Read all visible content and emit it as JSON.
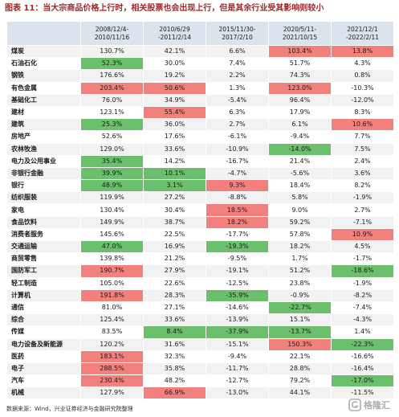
{
  "title": "图表 11：当大宗商品价格上行时，相关股票也会出现上行，但是其余行业受其影响则较小",
  "table": {
    "corner": "",
    "headers": [
      {
        "line1": "2008/12/4-",
        "line2": "2010/11/16"
      },
      {
        "line1": "2010/6/29",
        "line2": "-2011/2/14"
      },
      {
        "line1": "2015/11/30-",
        "line2": "2017/2/10"
      },
      {
        "line1": "2020/5/11-",
        "line2": "2021/10/15"
      },
      {
        "line1": "2021/12/1",
        "line2": "-2022/2/11"
      }
    ],
    "rows": [
      {
        "name": "煤炭",
        "values": [
          "130.7%",
          "42.1%",
          "6.6%",
          "103.4%",
          "13.8%"
        ],
        "marks": [
          0,
          0,
          0,
          1,
          1
        ]
      },
      {
        "name": "石油石化",
        "values": [
          "52.3%",
          "30.0%",
          "7.4%",
          "51.7%",
          "4.3%"
        ],
        "marks": [
          -1,
          0,
          0,
          0,
          0
        ]
      },
      {
        "name": "钢铁",
        "values": [
          "176.6%",
          "19.2%",
          "2.2%",
          "74.3%",
          "0.8%"
        ],
        "marks": [
          0,
          0,
          0,
          0,
          0
        ]
      },
      {
        "name": "有色金属",
        "values": [
          "203.4%",
          "50.6%",
          "1.3%",
          "123.0%",
          "-10.3%"
        ],
        "marks": [
          1,
          1,
          0,
          1,
          0
        ]
      },
      {
        "name": "基础化工",
        "values": [
          "76.0%",
          "34.9%",
          "-5.4%",
          "96.4%",
          "-12.0%"
        ],
        "marks": [
          0,
          0,
          0,
          0,
          0
        ]
      },
      {
        "name": "建材",
        "values": [
          "123.1%",
          "55.4%",
          "6.3%",
          "17.9%",
          "8.3%"
        ],
        "marks": [
          0,
          1,
          0,
          0,
          0
        ]
      },
      {
        "name": "建筑",
        "values": [
          "25.3%",
          "36.0%",
          "2.7%",
          "6.1%",
          "10.6%"
        ],
        "marks": [
          -1,
          0,
          0,
          0,
          1
        ]
      },
      {
        "name": "房地产",
        "values": [
          "52.6%",
          "17.6%",
          "-6.1%",
          "-9.4%",
          "7.7%"
        ],
        "marks": [
          0,
          0,
          0,
          0,
          0
        ]
      },
      {
        "name": "农林牧渔",
        "values": [
          "129.0%",
          "33.6%",
          "-10.9%",
          "-14.0%",
          "7.5%"
        ],
        "marks": [
          0,
          0,
          0,
          -1,
          0
        ]
      },
      {
        "name": "电力及公用事业",
        "values": [
          "35.4%",
          "14.2%",
          "-16.7%",
          "21.4%",
          "2.4%"
        ],
        "marks": [
          -1,
          0,
          0,
          0,
          0
        ]
      },
      {
        "name": "非银行金融",
        "values": [
          "39.9%",
          "10.1%",
          "-4.7%",
          "-5.6%",
          "3.6%"
        ],
        "marks": [
          -1,
          -1,
          0,
          0,
          0
        ]
      },
      {
        "name": "银行",
        "values": [
          "48.9%",
          "3.1%",
          "9.3%",
          "18.4%",
          "8.2%"
        ],
        "marks": [
          -1,
          -1,
          1,
          0,
          0
        ]
      },
      {
        "name": "纺织服装",
        "values": [
          "119.9%",
          "27.2%",
          "-8.8%",
          "5.8%",
          "-1.9%"
        ],
        "marks": [
          0,
          0,
          0,
          0,
          0
        ]
      },
      {
        "name": "家电",
        "values": [
          "130.4%",
          "30.4%",
          "18.5%",
          "9.0%",
          "2.7%"
        ],
        "marks": [
          0,
          0,
          1,
          0,
          0
        ]
      },
      {
        "name": "食品饮料",
        "values": [
          "149.9%",
          "38.7%",
          "18.2%",
          "59.2%",
          "-7.1%"
        ],
        "marks": [
          0,
          0,
          1,
          0,
          0
        ]
      },
      {
        "name": "消费者服务",
        "values": [
          "145.6%",
          "22.5%",
          "-17.7%",
          "57.8%",
          "10.9%"
        ],
        "marks": [
          0,
          0,
          0,
          0,
          1
        ]
      },
      {
        "name": "交通运输",
        "values": [
          "47.0%",
          "16.9%",
          "-19.3%",
          "18.2%",
          "4.5%"
        ],
        "marks": [
          -1,
          0,
          -1,
          0,
          0
        ]
      },
      {
        "name": "商贸零售",
        "values": [
          "139.8%",
          "21.2%",
          "-9.5%",
          "1.7%",
          "-1.7%"
        ],
        "marks": [
          0,
          0,
          0,
          0,
          0
        ]
      },
      {
        "name": "国防军工",
        "values": [
          "190.7%",
          "27.9%",
          "-19.1%",
          "51.2%",
          "-18.6%"
        ],
        "marks": [
          1,
          0,
          0,
          0,
          -1
        ]
      },
      {
        "name": "轻工制造",
        "values": [
          "105.0%",
          "22.6%",
          "-12.5%",
          "23.8%",
          "-1.9%"
        ],
        "marks": [
          0,
          0,
          0,
          0,
          0
        ]
      },
      {
        "name": "计算机",
        "values": [
          "191.8%",
          "28.3%",
          "-35.9%",
          "-0.9%",
          "-8.2%"
        ],
        "marks": [
          1,
          0,
          -1,
          0,
          0
        ]
      },
      {
        "name": "通信",
        "values": [
          "81.0%",
          "27.1%",
          "-14.6%",
          "-22.7%",
          "-7.4%"
        ],
        "marks": [
          0,
          0,
          0,
          -1,
          0
        ]
      },
      {
        "name": "综合",
        "values": [
          "125.4%",
          "33.6%",
          "-13.9%",
          "15.1%",
          "-4.3%"
        ],
        "marks": [
          0,
          0,
          0,
          0,
          0
        ]
      },
      {
        "name": "传媒",
        "values": [
          "83.5%",
          "8.4%",
          "-37.9%",
          "-13.7%",
          "1.4%"
        ],
        "marks": [
          0,
          -1,
          -1,
          -1,
          0
        ]
      },
      {
        "name": "电力设备及新能源",
        "values": [
          "120.2%",
          "31.6%",
          "-15.1%",
          "150.3%",
          "-22.3%"
        ],
        "marks": [
          0,
          0,
          0,
          1,
          -1
        ]
      },
      {
        "name": "医药",
        "values": [
          "183.1%",
          "32.3%",
          "-9.4%",
          "22.1%",
          "-16.6%"
        ],
        "marks": [
          1,
          0,
          0,
          0,
          0
        ]
      },
      {
        "name": "电子",
        "values": [
          "288.5%",
          "35.8%",
          "-11.7%",
          "28.8%",
          "-16.4%"
        ],
        "marks": [
          1,
          0,
          0,
          0,
          0
        ]
      },
      {
        "name": "汽车",
        "values": [
          "230.4%",
          "48.2%",
          "-12.7%",
          "79.2%",
          "-17.0%"
        ],
        "marks": [
          1,
          0,
          0,
          0,
          -1
        ]
      },
      {
        "name": "机械",
        "values": [
          "127.9%",
          "66.9%",
          "-13.0%",
          "44.1%",
          "-11.5%"
        ],
        "marks": [
          0,
          1,
          0,
          0,
          0
        ]
      }
    ]
  },
  "source": "数据来源：Wind，兴业证券经济与金融研究院整理",
  "watermark": {
    "text": "格隆汇",
    "icon": "gelonghui-logo-icon"
  },
  "colors": {
    "title": "#9c2a2a",
    "header_bg": "#dbe3ec",
    "stripe_bg": "#f2f2f2",
    "high_bg": "#f2817e",
    "low_bg": "#6cbf6c"
  }
}
